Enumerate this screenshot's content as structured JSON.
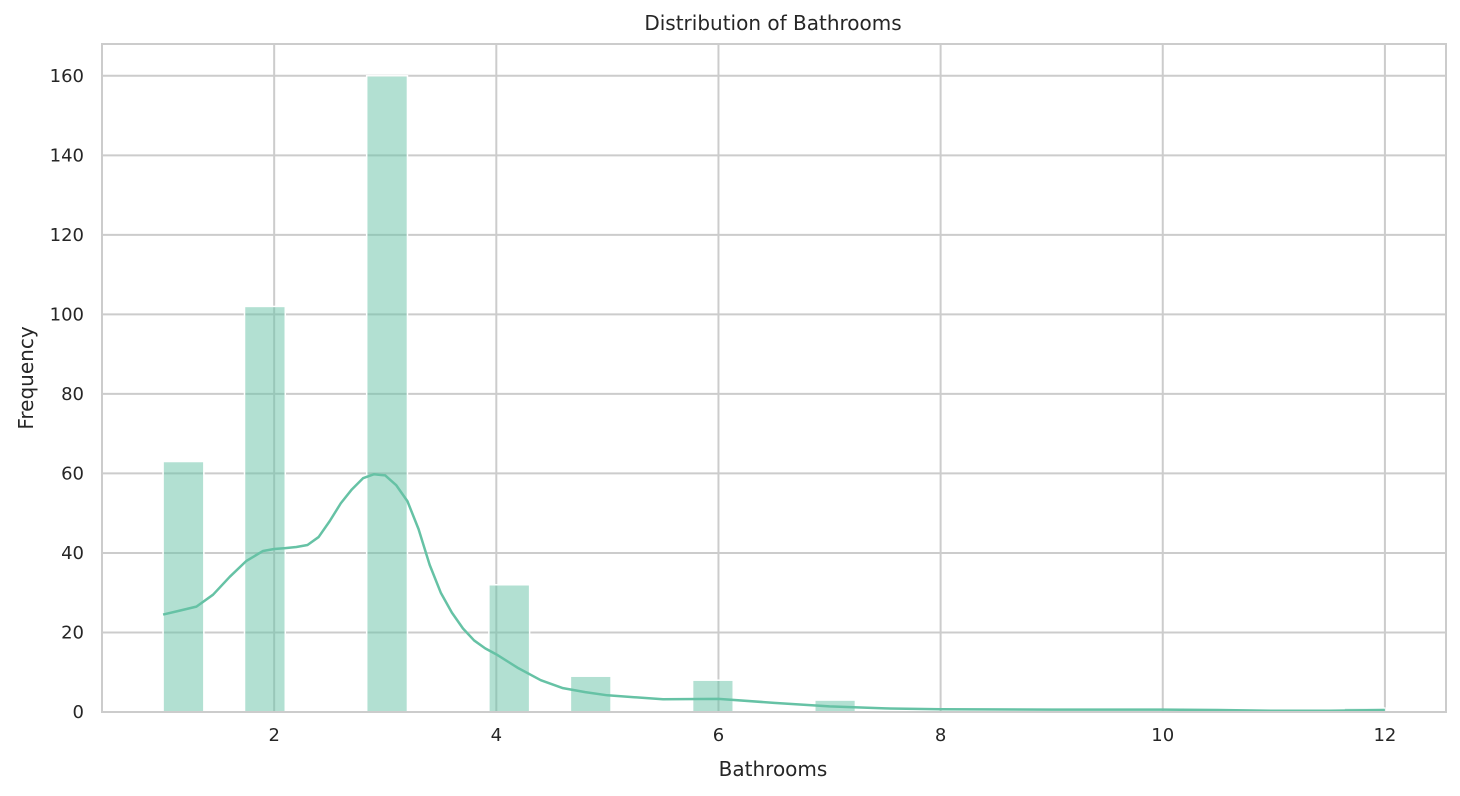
{
  "chart_data": {
    "type": "bar",
    "title": "Distribution of Bathrooms",
    "xlabel": "Bathrooms",
    "ylabel": "Frequency",
    "xlim": [
      0.45,
      12.55
    ],
    "ylim": [
      0,
      168
    ],
    "xticks": [
      2,
      4,
      6,
      8,
      10,
      12
    ],
    "yticks": [
      0,
      20,
      40,
      60,
      80,
      100,
      120,
      140,
      160
    ],
    "grid": true,
    "bar_color": "#66c2a5",
    "bar_opacity": 0.5,
    "kde_color": "#66c2a5",
    "bars": [
      {
        "x0": 1.0,
        "x1": 1.367,
        "value": 63
      },
      {
        "x0": 1.733,
        "x1": 2.1,
        "value": 102
      },
      {
        "x0": 2.833,
        "x1": 3.2,
        "value": 160
      },
      {
        "x0": 3.933,
        "x1": 4.3,
        "value": 32
      },
      {
        "x0": 4.667,
        "x1": 5.033,
        "value": 9
      },
      {
        "x0": 5.767,
        "x1": 6.133,
        "value": 8
      },
      {
        "x0": 6.867,
        "x1": 7.233,
        "value": 3
      },
      {
        "x0": 11.633,
        "x1": 12.0,
        "value": 1
      }
    ],
    "kde": {
      "x": [
        1.0,
        1.15,
        1.3,
        1.45,
        1.6,
        1.75,
        1.9,
        2.0,
        2.1,
        2.2,
        2.3,
        2.4,
        2.5,
        2.6,
        2.7,
        2.8,
        2.9,
        3.0,
        3.1,
        3.2,
        3.3,
        3.4,
        3.5,
        3.6,
        3.7,
        3.8,
        3.9,
        4.0,
        4.2,
        4.4,
        4.6,
        4.8,
        5.0,
        5.5,
        6.0,
        6.5,
        7.0,
        7.5,
        8.0,
        9.0,
        10.0,
        10.5,
        11.0,
        11.5,
        12.0
      ],
      "y": [
        24.5,
        25.5,
        26.5,
        29.5,
        34,
        38,
        40.5,
        41,
        41.2,
        41.5,
        42,
        44,
        48,
        52.5,
        56,
        58.8,
        59.8,
        59.5,
        57,
        53,
        46,
        37,
        30,
        25,
        21,
        18,
        16,
        14.5,
        11,
        8,
        6,
        5,
        4.2,
        3.2,
        3.3,
        2.3,
        1.4,
        0.9,
        0.7,
        0.6,
        0.6,
        0.5,
        0.3,
        0.3,
        0.5
      ]
    }
  }
}
